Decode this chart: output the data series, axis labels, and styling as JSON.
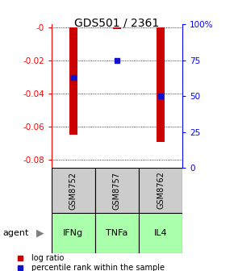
{
  "title": "GDS501 / 2361",
  "samples": [
    "GSM8752",
    "GSM8757",
    "GSM8762"
  ],
  "agents": [
    "IFNg",
    "TNFa",
    "IL4"
  ],
  "log_ratios": [
    -0.065,
    -0.001,
    -0.069
  ],
  "percentile_ranks": [
    63,
    75,
    50
  ],
  "ylim_left": [
    -0.085,
    0.002
  ],
  "bar_color": "#cc0000",
  "dot_color": "#1111cc",
  "sample_bg": "#cccccc",
  "agent_bg": "#aaffaa",
  "grid_ticks_left": [
    0,
    -0.02,
    -0.04,
    -0.06,
    -0.08
  ],
  "grid_ticks_right": [
    100,
    75,
    50,
    25,
    0
  ],
  "left_tick_labels": [
    "-0",
    "-0.02",
    "-0.04",
    "-0.06",
    "-0.08"
  ],
  "right_tick_labels": [
    "100%",
    "75",
    "50",
    "25",
    "0"
  ],
  "bar_width": 0.18,
  "figsize": [
    2.9,
    3.36
  ],
  "dpi": 100
}
